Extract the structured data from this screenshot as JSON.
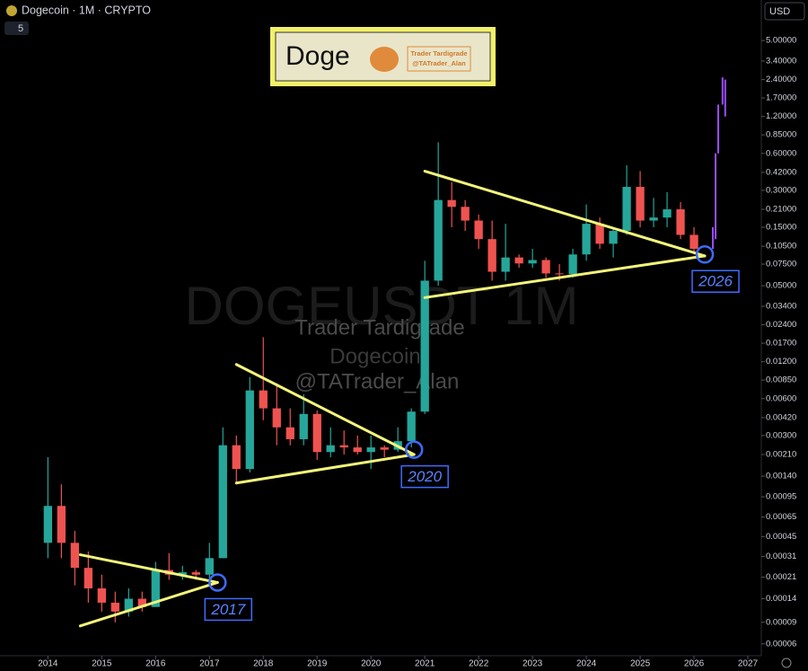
{
  "chart_data": {
    "type": "candlestick",
    "title": "Dogecoin · 1M · CRYPTO",
    "indicator_count": "5",
    "currency": "USD",
    "log_scale": true,
    "up_color": "#26a69a",
    "down_color": "#ef5350",
    "xlim": [
      2013.11,
      2027.25
    ],
    "xticks": [
      2014,
      2015,
      2016,
      2017,
      2018,
      2019,
      2020,
      2021,
      2022,
      2023,
      2024,
      2025,
      2026,
      2027
    ],
    "ylim": [
      4.8e-05,
      10.7
    ],
    "yticks": [
      {
        "value": 5,
        "label": "5.00000"
      },
      {
        "value": 3.4,
        "label": "3.40000"
      },
      {
        "value": 2.4,
        "label": "2.40000"
      },
      {
        "value": 1.7,
        "label": "1.70000"
      },
      {
        "value": 1.2,
        "label": "1.20000"
      },
      {
        "value": 0.85,
        "label": "0.85000"
      },
      {
        "value": 0.6,
        "label": "0.60000"
      },
      {
        "value": 0.42,
        "label": "0.42000"
      },
      {
        "value": 0.3,
        "label": "0.30000"
      },
      {
        "value": 0.21,
        "label": "0.21000"
      },
      {
        "value": 0.15,
        "label": "0.15000"
      },
      {
        "value": 0.105,
        "label": "0.10500"
      },
      {
        "value": 0.075,
        "label": "0.07500"
      },
      {
        "value": 0.05,
        "label": "0.05000"
      },
      {
        "value": 0.034,
        "label": "0.03400"
      },
      {
        "value": 0.024,
        "label": "0.02400"
      },
      {
        "value": 0.017,
        "label": "0.01700"
      },
      {
        "value": 0.012,
        "label": "0.01200"
      },
      {
        "value": 0.0085,
        "label": "0.00850"
      },
      {
        "value": 0.006,
        "label": "0.00600"
      },
      {
        "value": 0.0042,
        "label": "0.00420"
      },
      {
        "value": 0.003,
        "label": "0.00300"
      },
      {
        "value": 0.0021,
        "label": "0.00210"
      },
      {
        "value": 0.0014,
        "label": "0.00140"
      },
      {
        "value": 0.00095,
        "label": "0.00095"
      },
      {
        "value": 0.00065,
        "label": "0.00065"
      },
      {
        "value": 0.00045,
        "label": "0.00045"
      },
      {
        "value": 0.00031,
        "label": "0.00031"
      },
      {
        "value": 0.00021,
        "label": "0.00021"
      },
      {
        "value": 0.00014,
        "label": "0.00014"
      },
      {
        "value": 9e-05,
        "label": "0.00009"
      },
      {
        "value": 6e-05,
        "label": "0.00006"
      }
    ],
    "x": [
      2014.0,
      2014.25,
      2014.5,
      2014.75,
      2015.0,
      2015.25,
      2015.5,
      2015.75,
      2016.0,
      2016.25,
      2016.5,
      2016.75,
      2017.0,
      2017.25,
      2017.5,
      2017.75,
      2018.0,
      2018.25,
      2018.5,
      2018.75,
      2019.0,
      2019.25,
      2019.5,
      2019.75,
      2020.0,
      2020.25,
      2020.5,
      2020.75,
      2021.0,
      2021.25,
      2021.5,
      2021.75,
      2022.0,
      2022.25,
      2022.5,
      2022.75,
      2023.0,
      2023.25,
      2023.5,
      2023.75,
      2024.0,
      2024.25,
      2024.5,
      2024.75,
      2025.0,
      2025.25,
      2025.5,
      2025.75,
      2026.0
    ],
    "open": [
      0.0004,
      0.0008,
      0.0004,
      0.00025,
      0.00017,
      0.00013,
      0.00011,
      0.00014,
      0.00012,
      0.00024,
      0.00022,
      0.00023,
      0.00022,
      0.0003,
      0.0025,
      0.0016,
      0.007,
      0.005,
      0.0035,
      0.0028,
      0.0045,
      0.0022,
      0.0025,
      0.0024,
      0.0022,
      0.0024,
      0.0023,
      0.0027,
      0.0047,
      0.055,
      0.25,
      0.22,
      0.17,
      0.12,
      0.065,
      0.085,
      0.076,
      0.081,
      0.063,
      0.062,
      0.09,
      0.16,
      0.11,
      0.14,
      0.32,
      0.17,
      0.18,
      0.21,
      0.13
    ],
    "high": [
      0.002,
      0.0012,
      0.0005,
      0.00034,
      0.00022,
      0.00016,
      0.00017,
      0.00016,
      0.00028,
      0.00033,
      0.00026,
      0.00024,
      0.0004,
      0.0035,
      0.003,
      0.009,
      0.019,
      0.008,
      0.005,
      0.0065,
      0.0048,
      0.0035,
      0.0033,
      0.003,
      0.003,
      0.0025,
      0.0035,
      0.005,
      0.08,
      0.74,
      0.35,
      0.25,
      0.19,
      0.17,
      0.16,
      0.09,
      0.1,
      0.085,
      0.075,
      0.1,
      0.23,
      0.18,
      0.15,
      0.48,
      0.43,
      0.26,
      0.29,
      0.24,
      0.15
    ],
    "low": [
      0.0003,
      0.0003,
      0.00018,
      0.00013,
      0.00011,
      9e-05,
      0.0001,
      0.00011,
      0.00012,
      0.0002,
      0.0002,
      0.0002,
      0.0002,
      0.0003,
      0.0012,
      0.0015,
      0.004,
      0.0025,
      0.0025,
      0.0025,
      0.0019,
      0.002,
      0.0021,
      0.0021,
      0.0016,
      0.002,
      0.0022,
      0.0024,
      0.0045,
      0.05,
      0.15,
      0.14,
      0.1,
      0.055,
      0.055,
      0.07,
      0.07,
      0.058,
      0.055,
      0.058,
      0.08,
      0.1,
      0.085,
      0.13,
      0.15,
      0.15,
      0.15,
      0.12,
      0.09
    ],
    "close": [
      0.0008,
      0.0004,
      0.00025,
      0.00017,
      0.00013,
      0.00011,
      0.00014,
      0.00012,
      0.00024,
      0.00022,
      0.00023,
      0.00022,
      0.0003,
      0.0025,
      0.0016,
      0.007,
      0.005,
      0.0035,
      0.0028,
      0.0045,
      0.0022,
      0.0025,
      0.0024,
      0.0022,
      0.0024,
      0.0023,
      0.0027,
      0.0047,
      0.055,
      0.25,
      0.22,
      0.17,
      0.12,
      0.065,
      0.085,
      0.076,
      0.081,
      0.063,
      0.062,
      0.09,
      0.16,
      0.11,
      0.14,
      0.32,
      0.17,
      0.18,
      0.21,
      0.13,
      0.1
    ],
    "projection": {
      "color": "#9b4dff",
      "x": [
        2026.35,
        2026.4,
        2026.45,
        2026.53,
        2026.58
      ],
      "low": [
        0.1,
        0.12,
        0.6,
        1.5,
        1.2
      ],
      "high": [
        0.15,
        0.6,
        1.5,
        2.5,
        2.4
      ]
    },
    "trendlines": [
      {
        "x": [
          2014.6,
          2017.15
        ],
        "y": [
          0.00032,
          0.00019
        ]
      },
      {
        "x": [
          2014.6,
          2017.15
        ],
        "y": [
          8.4e-05,
          0.00019
        ]
      },
      {
        "x": [
          2017.5,
          2020.8
        ],
        "y": [
          0.0114,
          0.0021
        ]
      },
      {
        "x": [
          2017.5,
          2020.8
        ],
        "y": [
          0.00123,
          0.0021
        ]
      },
      {
        "x": [
          2021.0,
          2026.2
        ],
        "y": [
          0.43,
          0.0875
        ]
      },
      {
        "x": [
          2021.0,
          2026.2
        ],
        "y": [
          0.04,
          0.0875
        ]
      }
    ],
    "markers": [
      {
        "x": 2017.15,
        "y": 0.00019,
        "label": "2017"
      },
      {
        "x": 2020.8,
        "y": 0.0023,
        "label": "2020"
      },
      {
        "x": 2026.2,
        "y": 0.09,
        "label": "2026"
      }
    ],
    "logo": {
      "title": "Doge",
      "author": "Trader Tardigrade",
      "handle": "@TATrader_Alan"
    },
    "watermark": {
      "symbol": "DOGEUSDT 1M",
      "author": "Trader Tardigrade",
      "name": "Dogecoin",
      "handle": "@TATrader_Alan"
    }
  }
}
